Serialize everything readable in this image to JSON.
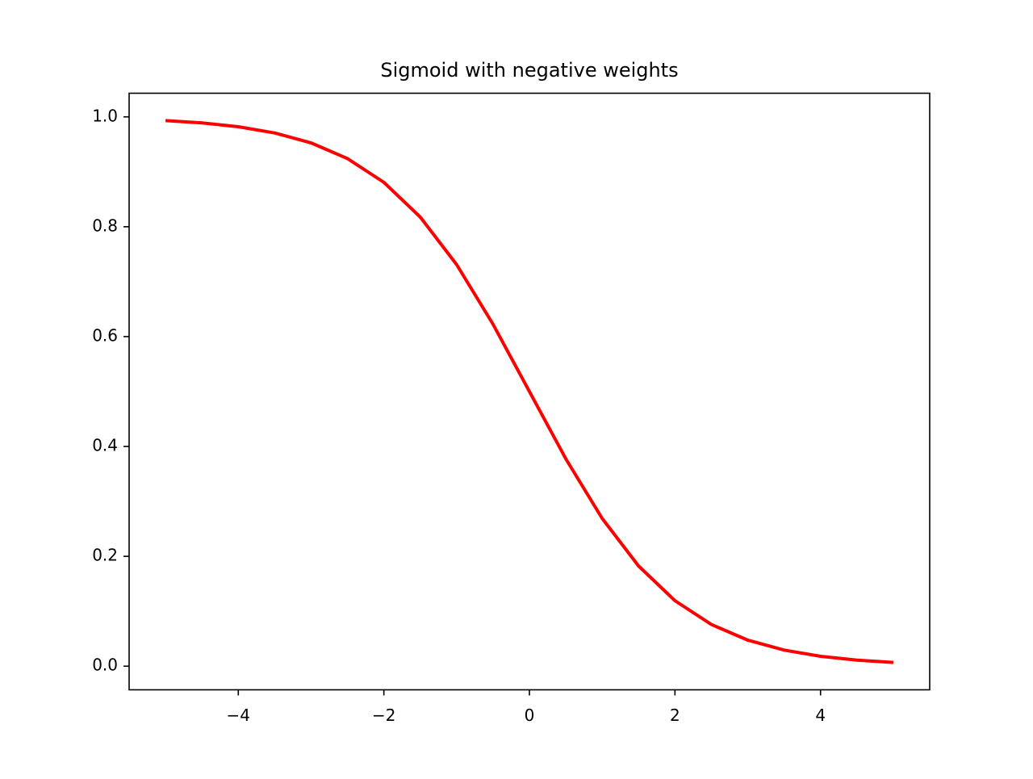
{
  "chart_data": {
    "type": "line",
    "title": "Sigmoid with negative weights",
    "xlabel": "",
    "ylabel": "",
    "xlim": [
      -5.5,
      5.5
    ],
    "ylim": [
      -0.043,
      1.043
    ],
    "x_ticks": [
      -4,
      -2,
      0,
      2,
      4
    ],
    "x_tick_labels": [
      "−4",
      "−2",
      "0",
      "2",
      "4"
    ],
    "y_ticks": [
      0.0,
      0.2,
      0.4,
      0.6,
      0.8,
      1.0
    ],
    "y_tick_labels": [
      "0.0",
      "0.2",
      "0.4",
      "0.6",
      "0.8",
      "1.0"
    ],
    "grid": false,
    "series": [
      {
        "color": "#ff0000",
        "x": [
          -5.0,
          -4.5,
          -4.0,
          -3.5,
          -3.0,
          -2.5,
          -2.0,
          -1.5,
          -1.0,
          -0.5,
          0.0,
          0.5,
          1.0,
          1.5,
          2.0,
          2.5,
          3.0,
          3.5,
          4.0,
          4.5,
          5.0
        ],
        "y": [
          0.9933,
          0.989,
          0.982,
          0.9707,
          0.9526,
          0.9241,
          0.8808,
          0.8176,
          0.7311,
          0.6225,
          0.5,
          0.3775,
          0.2689,
          0.1824,
          0.1192,
          0.0759,
          0.0474,
          0.0293,
          0.018,
          0.011,
          0.0067
        ]
      }
    ]
  }
}
